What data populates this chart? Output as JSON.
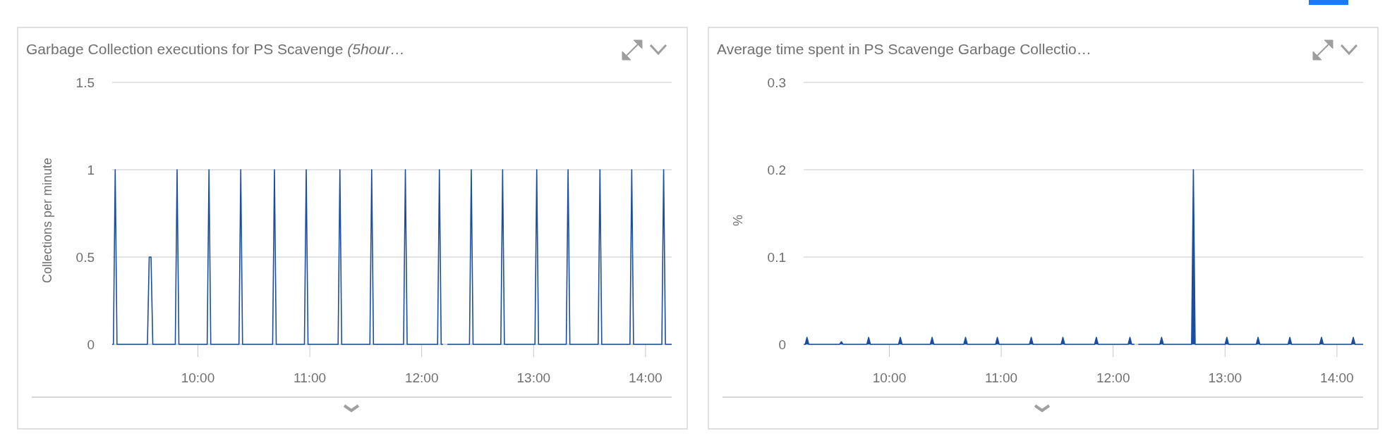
{
  "chart_data": [
    {
      "type": "line",
      "title": "Garbage Collection executions for PS Scavenge (5hour…",
      "ylabel": "Collections per minute",
      "xlim": [
        9.234,
        14.234
      ],
      "xticks": [
        {
          "value": 10,
          "label": "10:00"
        },
        {
          "value": 11,
          "label": "11:00"
        },
        {
          "value": 12,
          "label": "12:00"
        },
        {
          "value": 13,
          "label": "13:00"
        },
        {
          "value": 14,
          "label": "14:00"
        }
      ],
      "ylim": [
        0,
        1.5
      ],
      "yticks": [
        0,
        0.5,
        1,
        1.5
      ],
      "grid": "y",
      "series": [
        {
          "color": "#1a4ea3",
          "x": [
            9.234,
            9.245,
            9.261,
            9.277,
            9.549,
            9.565,
            9.581,
            9.597,
            9.798,
            9.814,
            9.83,
            10.083,
            10.099,
            10.115,
            10.367,
            10.383,
            10.399,
            10.668,
            10.684,
            10.7,
            10.952,
            10.968,
            10.984,
            11.253,
            11.269,
            11.285,
            11.537,
            11.553,
            11.569,
            11.838,
            11.854,
            11.87,
            12.142,
            12.158,
            12.174,
            12.19,
            12.2,
            12.23,
            12.427,
            12.443,
            12.459,
            12.707,
            12.723,
            12.739,
            13.012,
            13.028,
            13.044,
            13.292,
            13.308,
            13.324,
            13.577,
            13.593,
            13.609,
            13.861,
            13.877,
            13.893,
            14.146,
            14.162,
            14.178,
            14.234
          ],
          "values": [
            0,
            0,
            1,
            0,
            0,
            0.5,
            0.5,
            0,
            0,
            1,
            0,
            0,
            1,
            0,
            0,
            1,
            0,
            0,
            1,
            0,
            0,
            1,
            0,
            0,
            1,
            0,
            0,
            1,
            0,
            0,
            1,
            0,
            0,
            1,
            0,
            0,
            null,
            0,
            0,
            1,
            0,
            0,
            1,
            0,
            0,
            1,
            0,
            0,
            1,
            0,
            0,
            1,
            0,
            0,
            1,
            0,
            0,
            1,
            0,
            0
          ]
        }
      ]
    },
    {
      "type": "area",
      "title": "Average time spent in PS Scavenge Garbage Collectio…",
      "ylabel": "%",
      "xlim": [
        9.234,
        14.234
      ],
      "xticks": [
        {
          "value": 10,
          "label": "10:00"
        },
        {
          "value": 11,
          "label": "11:00"
        },
        {
          "value": 12,
          "label": "12:00"
        },
        {
          "value": 13,
          "label": "13:00"
        },
        {
          "value": 14,
          "label": "14:00"
        }
      ],
      "ylim": [
        0,
        0.3
      ],
      "yticks": [
        0,
        0.1,
        0.2,
        0.3
      ],
      "grid": "y",
      "series": [
        {
          "color": "#1a4ea3",
          "x": [
            9.236,
            9.248,
            9.264,
            9.28,
            9.555,
            9.571,
            9.587,
            9.799,
            9.815,
            9.831,
            10.082,
            10.098,
            10.114,
            10.366,
            10.382,
            10.398,
            10.665,
            10.681,
            10.697,
            10.949,
            10.965,
            10.981,
            11.252,
            11.268,
            11.284,
            11.535,
            11.551,
            11.567,
            11.834,
            11.85,
            11.866,
            12.134,
            12.15,
            12.166,
            12.19,
            12.2,
            12.225,
            12.417,
            12.433,
            12.449,
            12.701,
            12.717,
            12.733,
            13.0,
            13.016,
            13.032,
            13.279,
            13.295,
            13.311,
            13.563,
            13.579,
            13.595,
            13.846,
            13.862,
            13.878,
            14.13,
            14.146,
            14.162,
            14.234
          ],
          "values": [
            0,
            0,
            0.008,
            0,
            0,
            0.003,
            0,
            0,
            0.008,
            0,
            0,
            0.008,
            0,
            0,
            0.008,
            0,
            0,
            0.008,
            0,
            0,
            0.008,
            0,
            0,
            0.008,
            0,
            0,
            0.008,
            0,
            0,
            0.008,
            0,
            0,
            0.008,
            0,
            0,
            null,
            0,
            0,
            0.008,
            0,
            0,
            0.2,
            0,
            0,
            0.008,
            0,
            0,
            0.008,
            0,
            0,
            0.008,
            0,
            0,
            0.008,
            0,
            0,
            0.008,
            0,
            0
          ]
        }
      ]
    }
  ]
}
